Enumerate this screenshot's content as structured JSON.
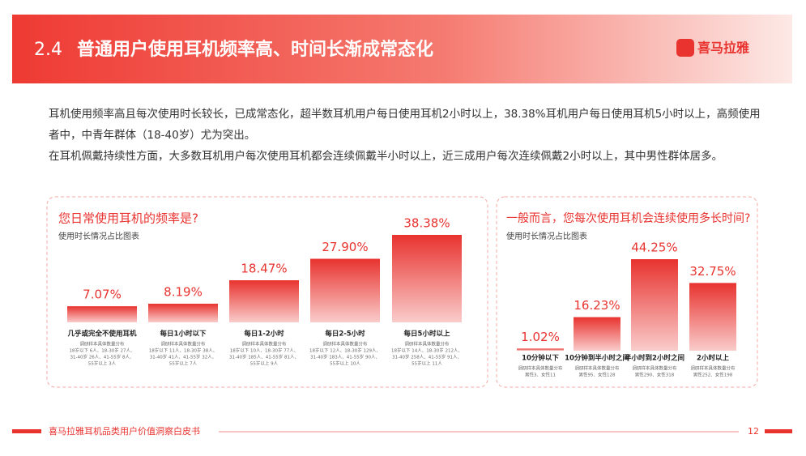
{
  "header": {
    "number": "2.4",
    "title": "普通用户使用耳机频率高、时间长渐成常态化",
    "logo": "喜马拉雅"
  },
  "body": [
    "耳机使用频率高且每次使用时长较长，已成常态化，超半数耳机用户每日使用耳机2小时以上，38.38%耳机用户每日使用耳机5小时以上，高频使用者中，中青年群体（18-40岁）尤为突出。",
    "在耳机佩戴持续性方面，大多数耳机用户每次使用耳机都会连续佩戴半小时以上，近三成用户每次连续佩戴2小时以上，其中男性群体居多。"
  ],
  "chart_data": [
    {
      "type": "bar",
      "title": "您日常使用耳机的频率是?",
      "subtitle": "使用时长情况占比图表",
      "categories": [
        "几乎或完全不使用耳机",
        "每日1小时以下",
        "每日1-2小时",
        "每日2-5小时",
        "每日5小时以上"
      ],
      "values": [
        7.07,
        8.19,
        18.47,
        27.9,
        38.38
      ],
      "value_labels": [
        "7.07%",
        "8.19%",
        "18.47%",
        "27.90%",
        "38.38%"
      ],
      "color": "#e8332f",
      "notes": [
        [
          "调研样本具体数量分布",
          "18岁以下 6人、18-30岁 27人、",
          "31-40岁 26人、41-55岁 8人、",
          "55岁以上 3人"
        ],
        [
          "调研样本具体数量分布",
          "18岁以下 11人、18-30岁 38人、",
          "31-40岁 41人、41-55岁 32人、",
          "55岁以上 7人"
        ],
        [
          "调研样本具体数量分布",
          "18岁以下 10人、18-30岁 77人、",
          "31-40岁 185人、41-55岁 81人、",
          "55岁以上 9人"
        ],
        [
          "调研样本具体数量分布",
          "18岁以下 12人、18-30岁 129人、",
          "31-40岁 183人、41-55岁 90人、",
          "55岁以上 10人"
        ],
        [
          "调研样本具体数量分布",
          "18岁以下 14人、18-30岁 212人、",
          "31-40岁 258人、41-55岁 91人、",
          "55岁以上 11人"
        ]
      ]
    },
    {
      "type": "bar",
      "title": "一般而言，您每次使用耳机会连续使用多长时间?",
      "subtitle": "使用时长情况占比图表",
      "categories": [
        "10分钟以下",
        "10分钟到半小时之间",
        "半小时到2小时之间",
        "2小时以上"
      ],
      "values": [
        1.02,
        16.23,
        44.25,
        32.75
      ],
      "value_labels": [
        "1.02%",
        "16.23%",
        "44.25%",
        "32.75%"
      ],
      "color": "#e8332f",
      "notes": [
        [
          "调研样本具体数量分布",
          "男性3、女性11"
        ],
        [
          "调研样本具体数量分布",
          "男性95、女性128"
        ],
        [
          "调研样本具体数量分布",
          "男性290、女性318"
        ],
        [
          "调研样本具体数量分布",
          "男性252、女性198"
        ]
      ]
    }
  ],
  "footer": {
    "text": "喜马拉雅耳机品类用户价值洞察白皮书",
    "page": "12"
  }
}
